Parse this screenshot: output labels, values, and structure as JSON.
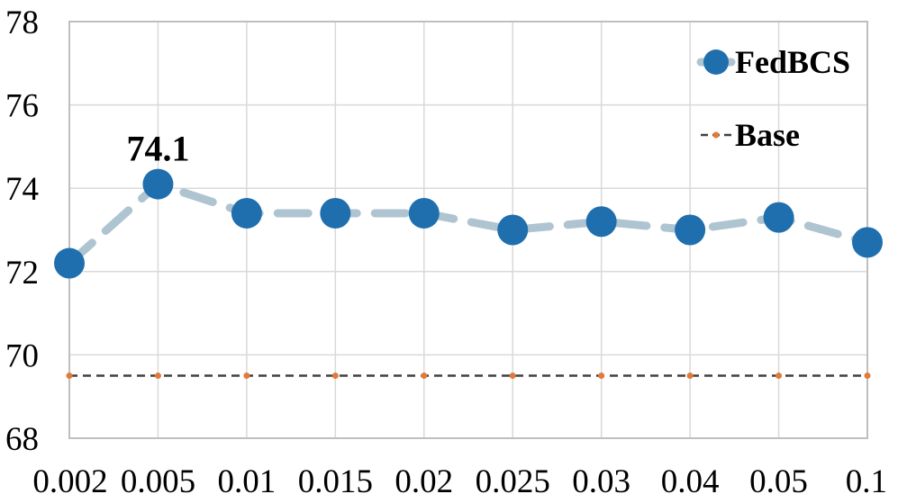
{
  "chart_data": {
    "type": "line",
    "categories": [
      "0.002",
      "0.005",
      "0.01",
      "0.015",
      "0.02",
      "0.025",
      "0.03",
      "0.04",
      "0.05",
      "0.1"
    ],
    "series": [
      {
        "name": "FedBCS",
        "values": [
          72.2,
          74.1,
          73.4,
          73.4,
          73.4,
          73.0,
          73.2,
          73.0,
          73.3,
          72.7
        ],
        "line_color": "#aec4d0",
        "marker_color": "#1f6fae",
        "line_style": "dashed",
        "marker": "circle"
      },
      {
        "name": "Base",
        "values": [
          69.5,
          69.5,
          69.5,
          69.5,
          69.5,
          69.5,
          69.5,
          69.5,
          69.5,
          69.5
        ],
        "line_color": "#404040",
        "marker_color": "#e07b39",
        "line_style": "dashed",
        "marker": "dot"
      }
    ],
    "annotations": [
      {
        "series": "FedBCS",
        "category": "0.005",
        "text": "74.1"
      }
    ],
    "y_ticks": [
      "68",
      "70",
      "72",
      "74",
      "76",
      "78"
    ],
    "ylim": [
      68,
      78
    ],
    "title": "",
    "xlabel": "",
    "ylabel": "",
    "grid": true,
    "legend_position": "top-right"
  }
}
